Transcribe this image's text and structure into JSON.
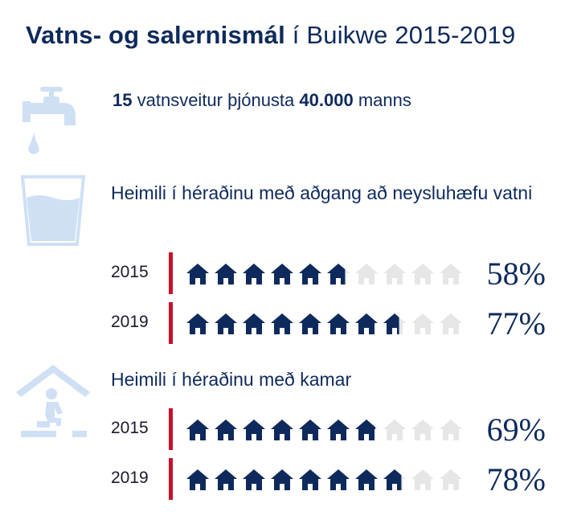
{
  "title": {
    "bold": "Vatns- og salernismál",
    "rest": "í Buikwe 2015-2019"
  },
  "stat": {
    "num1": "15",
    "text1": "vatnsveitur þjónusta",
    "num2": "40.000",
    "text2": "manns"
  },
  "icons": {
    "tap": "water-tap-icon",
    "glass": "water-glass-icon",
    "latrine": "latrine-icon",
    "house": "house-icon"
  },
  "colors": {
    "navy": "#0e2a5c",
    "red": "#c8102e",
    "light_blue": "#cfe0f5",
    "grey_house": "#e6e6e6"
  },
  "chart_data": [
    {
      "type": "bar",
      "title": "Heimili í héraðinu með aðgang að neysluhæfu vatni",
      "categories": [
        "2015",
        "2019"
      ],
      "values": [
        58,
        77
      ],
      "value_labels": [
        "58%",
        "77%"
      ],
      "ylim": [
        0,
        100
      ]
    },
    {
      "type": "bar",
      "title": "Heimili í héraðinu með kamar",
      "categories": [
        "2015",
        "2019"
      ],
      "values": [
        69,
        78
      ],
      "value_labels": [
        "69%",
        "78%"
      ],
      "ylim": [
        0,
        100
      ]
    }
  ]
}
